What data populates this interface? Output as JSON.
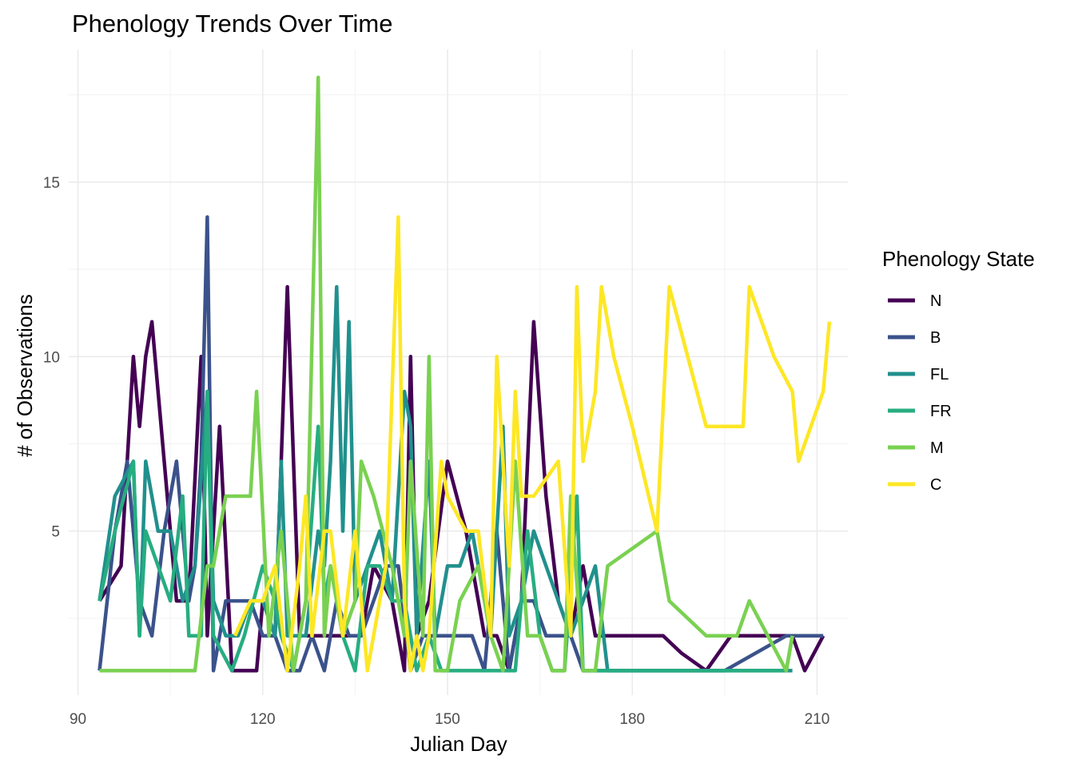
{
  "chart_data": {
    "type": "line",
    "title": "Phenology Trends Over Time",
    "xlabel": "Julian Day",
    "ylabel": "# of Observations",
    "xlim": [
      88.5,
      215
    ],
    "ylim": [
      0.3,
      18.8
    ],
    "x_ticks": [
      90,
      120,
      150,
      180,
      210
    ],
    "y_ticks": [
      5,
      10,
      15
    ],
    "x_minor_ticks": [
      105,
      135,
      165,
      195
    ],
    "y_minor_ticks": [
      2.5,
      7.5,
      12.5,
      17.5
    ],
    "grid": true,
    "legend": {
      "title": "Phenology State",
      "position": "right"
    },
    "series": [
      {
        "name": "N",
        "color": "#440154",
        "points": [
          [
            93.5,
            3
          ],
          [
            97,
            4
          ],
          [
            99,
            10
          ],
          [
            100,
            8
          ],
          [
            101,
            10
          ],
          [
            102,
            11
          ],
          [
            104,
            7
          ],
          [
            106,
            3
          ],
          [
            108,
            3
          ],
          [
            110,
            10
          ],
          [
            111,
            2
          ],
          [
            113,
            8
          ],
          [
            115,
            1
          ],
          [
            117,
            1
          ],
          [
            119,
            1
          ],
          [
            120,
            3
          ],
          [
            122,
            2
          ],
          [
            124,
            12
          ],
          [
            126,
            2
          ],
          [
            128,
            2
          ],
          [
            130,
            2
          ],
          [
            132,
            2
          ],
          [
            134,
            2
          ],
          [
            136,
            2
          ],
          [
            138,
            4
          ],
          [
            141,
            3
          ],
          [
            143,
            1
          ],
          [
            144,
            10
          ],
          [
            145,
            2
          ],
          [
            147,
            3
          ],
          [
            150,
            7
          ],
          [
            153,
            5
          ],
          [
            156,
            2
          ],
          [
            158,
            2
          ],
          [
            160,
            1
          ],
          [
            162,
            3
          ],
          [
            164,
            11
          ],
          [
            166,
            6
          ],
          [
            168,
            3
          ],
          [
            170,
            2
          ],
          [
            172,
            4
          ],
          [
            174,
            2
          ],
          [
            176,
            2
          ],
          [
            178,
            2
          ],
          [
            180,
            2
          ],
          [
            182,
            2
          ],
          [
            185,
            2
          ],
          [
            188,
            1.5
          ],
          [
            192,
            1
          ],
          [
            196,
            2
          ],
          [
            200,
            2
          ],
          [
            203,
            2
          ],
          [
            206,
            2
          ],
          [
            208,
            1
          ],
          [
            211,
            2
          ]
        ]
      },
      {
        "name": "B",
        "color": "#3b528b",
        "points": [
          [
            93.5,
            1
          ],
          [
            96,
            5
          ],
          [
            98,
            7
          ],
          [
            100,
            3
          ],
          [
            102,
            2
          ],
          [
            104,
            5
          ],
          [
            106,
            7
          ],
          [
            108,
            3
          ],
          [
            109,
            4
          ],
          [
            110,
            7
          ],
          [
            111,
            14
          ],
          [
            112,
            1
          ],
          [
            114,
            3
          ],
          [
            116,
            3
          ],
          [
            118,
            3
          ],
          [
            120,
            2
          ],
          [
            122,
            2
          ],
          [
            124,
            1
          ],
          [
            126,
            1
          ],
          [
            128,
            2
          ],
          [
            130,
            1
          ],
          [
            132,
            3
          ],
          [
            134,
            2
          ],
          [
            136,
            2
          ],
          [
            138,
            3
          ],
          [
            140,
            4
          ],
          [
            142,
            4
          ],
          [
            144,
            1
          ],
          [
            146,
            2
          ],
          [
            148,
            2
          ],
          [
            150,
            2
          ],
          [
            152,
            2
          ],
          [
            154,
            2
          ],
          [
            156,
            1
          ],
          [
            158,
            5
          ],
          [
            160,
            1
          ],
          [
            162,
            3
          ],
          [
            164,
            3
          ],
          [
            166,
            2
          ],
          [
            168,
            2
          ],
          [
            170,
            2
          ],
          [
            172,
            1
          ],
          [
            176,
            1
          ],
          [
            180,
            1
          ],
          [
            185,
            1
          ],
          [
            190,
            1
          ],
          [
            195,
            1
          ],
          [
            200,
            1.5
          ],
          [
            205,
            2
          ],
          [
            208,
            2
          ],
          [
            211,
            2
          ]
        ]
      },
      {
        "name": "FL",
        "color": "#21908d",
        "points": [
          [
            93.5,
            3
          ],
          [
            96,
            6
          ],
          [
            99,
            7
          ],
          [
            100,
            2
          ],
          [
            101,
            7
          ],
          [
            103,
            5
          ],
          [
            105,
            5
          ],
          [
            107,
            3
          ],
          [
            109,
            4
          ],
          [
            111,
            9
          ],
          [
            112,
            3
          ],
          [
            114,
            2
          ],
          [
            116,
            2
          ],
          [
            118,
            3
          ],
          [
            120,
            3
          ],
          [
            122,
            2
          ],
          [
            123,
            7
          ],
          [
            124,
            2
          ],
          [
            127,
            2
          ],
          [
            129,
            5
          ],
          [
            130,
            4
          ],
          [
            131,
            7
          ],
          [
            132,
            12
          ],
          [
            133,
            5
          ],
          [
            134,
            11
          ],
          [
            135,
            3
          ],
          [
            137,
            4
          ],
          [
            139,
            5
          ],
          [
            141,
            3
          ],
          [
            143,
            9
          ],
          [
            144,
            8
          ],
          [
            145,
            2
          ],
          [
            147,
            7
          ],
          [
            148,
            2
          ],
          [
            150,
            4
          ],
          [
            152,
            4
          ],
          [
            154,
            5
          ],
          [
            156,
            3
          ],
          [
            157,
            2
          ],
          [
            158,
            5
          ],
          [
            159,
            8
          ],
          [
            160,
            2
          ],
          [
            162,
            3
          ],
          [
            164,
            5
          ],
          [
            166,
            4
          ],
          [
            168,
            3
          ],
          [
            170,
            2
          ],
          [
            172,
            3
          ],
          [
            174,
            4
          ],
          [
            176,
            1
          ],
          [
            180,
            1
          ],
          [
            185,
            1
          ],
          [
            190,
            1
          ],
          [
            195,
            1
          ],
          [
            200,
            1
          ],
          [
            206,
            1
          ]
        ]
      },
      {
        "name": "FR",
        "color": "#27ad81",
        "points": [
          [
            93.5,
            3
          ],
          [
            96,
            5
          ],
          [
            99,
            7
          ],
          [
            100,
            2
          ],
          [
            101,
            5
          ],
          [
            103,
            4
          ],
          [
            105,
            3
          ],
          [
            107,
            6
          ],
          [
            108,
            2
          ],
          [
            110,
            2
          ],
          [
            111,
            9
          ],
          [
            112,
            2
          ],
          [
            115,
            1
          ],
          [
            117,
            2
          ],
          [
            120,
            4
          ],
          [
            122,
            3
          ],
          [
            123,
            2
          ],
          [
            125,
            1
          ],
          [
            127,
            3
          ],
          [
            129,
            8
          ],
          [
            130,
            3
          ],
          [
            131,
            4
          ],
          [
            133,
            2
          ],
          [
            135,
            1
          ],
          [
            137,
            4
          ],
          [
            139,
            4
          ],
          [
            141,
            3
          ],
          [
            143,
            3
          ],
          [
            145,
            1
          ],
          [
            147,
            2
          ],
          [
            149,
            1
          ],
          [
            152,
            1
          ],
          [
            155,
            1
          ],
          [
            157,
            1
          ],
          [
            159,
            1
          ],
          [
            161,
            1
          ],
          [
            163,
            5
          ],
          [
            165,
            2
          ],
          [
            167,
            1
          ],
          [
            169,
            1
          ],
          [
            171,
            6
          ],
          [
            172,
            1
          ],
          [
            174,
            1
          ],
          [
            177,
            1
          ],
          [
            180,
            1
          ],
          [
            185,
            1
          ],
          [
            190,
            1
          ],
          [
            195,
            1
          ],
          [
            200,
            1
          ],
          [
            205,
            1
          ],
          [
            206,
            2
          ]
        ]
      },
      {
        "name": "M",
        "color": "#7ad151",
        "points": [
          [
            93.5,
            1
          ],
          [
            97,
            1
          ],
          [
            101,
            1
          ],
          [
            105,
            1
          ],
          [
            109,
            1
          ],
          [
            111,
            4
          ],
          [
            112,
            4
          ],
          [
            114,
            6
          ],
          [
            116,
            6
          ],
          [
            118,
            6
          ],
          [
            119,
            9
          ],
          [
            121,
            2
          ],
          [
            123,
            5
          ],
          [
            125,
            1
          ],
          [
            127,
            3
          ],
          [
            129,
            18
          ],
          [
            130,
            2
          ],
          [
            131,
            4
          ],
          [
            133,
            2
          ],
          [
            135,
            3
          ],
          [
            136,
            7
          ],
          [
            138,
            6
          ],
          [
            141,
            4
          ],
          [
            143,
            2
          ],
          [
            144,
            7
          ],
          [
            146,
            2
          ],
          [
            147,
            10
          ],
          [
            148,
            1
          ],
          [
            150,
            1
          ],
          [
            152,
            3
          ],
          [
            155,
            4
          ],
          [
            157,
            2
          ],
          [
            159,
            1
          ],
          [
            161,
            7
          ],
          [
            163,
            2
          ],
          [
            165,
            2
          ],
          [
            167,
            1
          ],
          [
            169,
            1
          ],
          [
            170,
            6
          ],
          [
            172,
            1
          ],
          [
            174,
            1
          ],
          [
            176,
            4
          ],
          [
            180,
            4.5
          ],
          [
            184,
            5
          ],
          [
            186,
            3
          ],
          [
            192,
            2
          ],
          [
            197,
            2
          ],
          [
            199,
            3
          ],
          [
            202,
            2
          ],
          [
            205,
            1
          ],
          [
            206,
            2
          ]
        ]
      },
      {
        "name": "C",
        "color": "#fde725",
        "points": [
          [
            115.5,
            2
          ],
          [
            118,
            3
          ],
          [
            120,
            3
          ],
          [
            122,
            4
          ],
          [
            124,
            1
          ],
          [
            126,
            4
          ],
          [
            127,
            6
          ],
          [
            128,
            2
          ],
          [
            130,
            5
          ],
          [
            131,
            5
          ],
          [
            133,
            2
          ],
          [
            135,
            5
          ],
          [
            137,
            1
          ],
          [
            140,
            4
          ],
          [
            142,
            14
          ],
          [
            143,
            3
          ],
          [
            144,
            1
          ],
          [
            145,
            2
          ],
          [
            146,
            1
          ],
          [
            147,
            2
          ],
          [
            149,
            7
          ],
          [
            150,
            6
          ],
          [
            153,
            5
          ],
          [
            155,
            5
          ],
          [
            157,
            2
          ],
          [
            158,
            10
          ],
          [
            160,
            4
          ],
          [
            161,
            9
          ],
          [
            162,
            6
          ],
          [
            164,
            6
          ],
          [
            168,
            7
          ],
          [
            170,
            2
          ],
          [
            171,
            12
          ],
          [
            172,
            7
          ],
          [
            174,
            9
          ],
          [
            175,
            12
          ],
          [
            177,
            10
          ],
          [
            180,
            8
          ],
          [
            184,
            5
          ],
          [
            186,
            12
          ],
          [
            192,
            8
          ],
          [
            198,
            8
          ],
          [
            199,
            12
          ],
          [
            203,
            10
          ],
          [
            206,
            9
          ],
          [
            207,
            7
          ],
          [
            211,
            9
          ],
          [
            212,
            11
          ]
        ]
      }
    ]
  }
}
